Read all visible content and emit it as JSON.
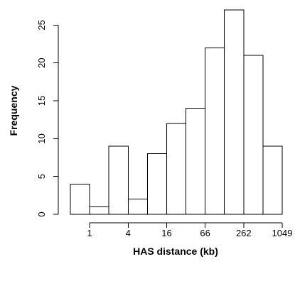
{
  "chart_data": {
    "type": "bar",
    "xlabel": "HAS distance (kb)",
    "ylabel": "Frequency",
    "x_tick_labels": [
      "1",
      "4",
      "16",
      "66",
      "262",
      "1049"
    ],
    "y_ticks": [
      0,
      5,
      10,
      15,
      20,
      25
    ],
    "values": [
      4,
      1,
      9,
      2,
      8,
      12,
      14,
      22,
      27,
      21,
      9
    ],
    "ylim": [
      0,
      27
    ],
    "grid": false
  }
}
